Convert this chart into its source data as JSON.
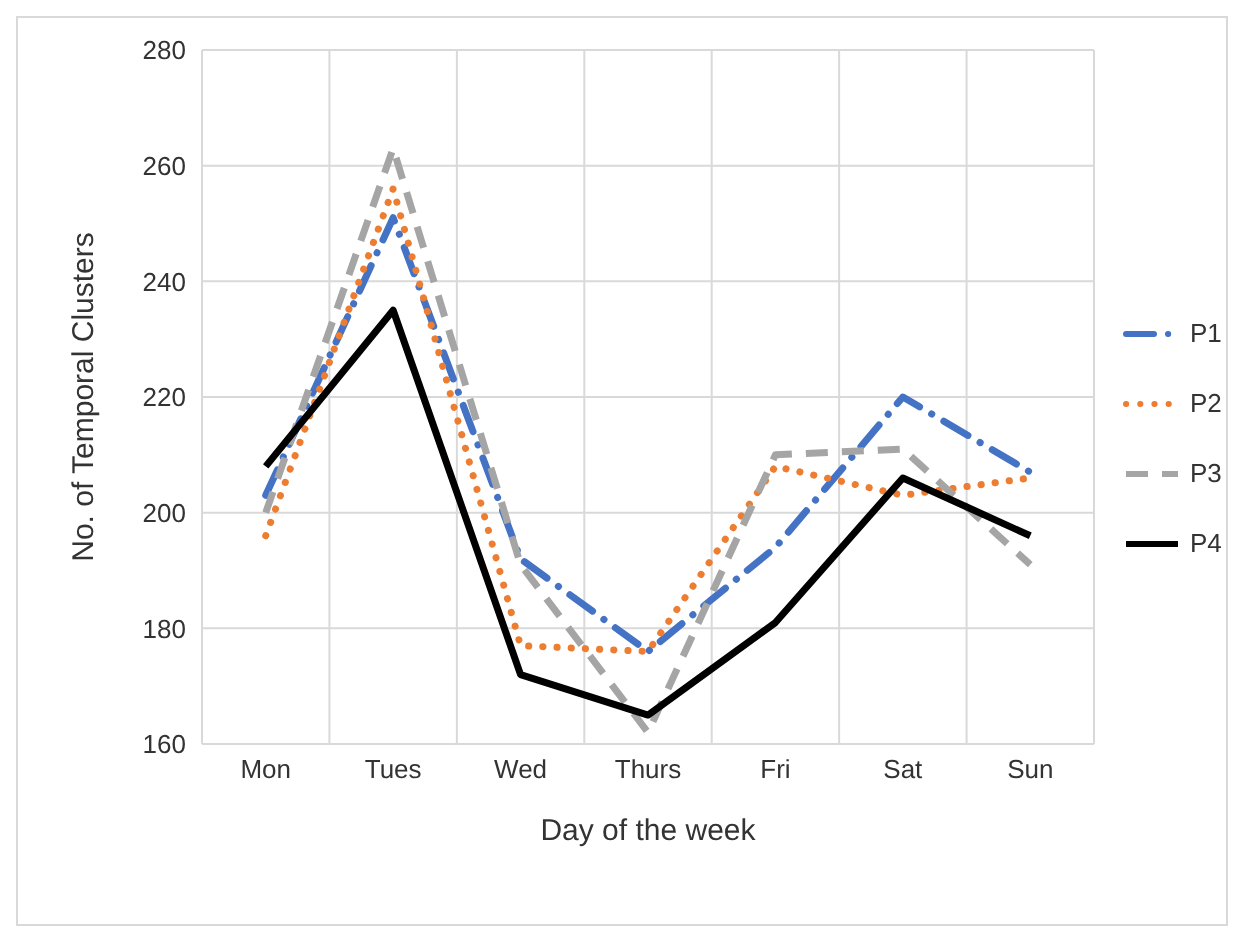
{
  "chart_data": {
    "type": "line",
    "xlabel": "Day of the week",
    "ylabel": "No. of Temporal Clusters",
    "categories": [
      "Mon",
      "Tues",
      "Wed",
      "Thurs",
      "Fri",
      "Sat",
      "Sun"
    ],
    "series": [
      {
        "name": "P1",
        "color": "#4472c4",
        "line_style": "dashdot",
        "values": [
          203,
          251,
          192,
          176,
          194,
          220,
          207
        ]
      },
      {
        "name": "P2",
        "color": "#ed7d31",
        "line_style": "dotted",
        "values": [
          196,
          256,
          177,
          176,
          208,
          203,
          206
        ]
      },
      {
        "name": "P3",
        "color": "#a5a5a5",
        "line_style": "dashed",
        "values": [
          200,
          263,
          191,
          162,
          210,
          211,
          191
        ]
      },
      {
        "name": "P4",
        "color": "#000000",
        "line_style": "solid",
        "values": [
          208,
          235,
          172,
          165,
          181,
          206,
          196
        ]
      }
    ],
    "ylim": [
      160,
      280
    ],
    "yticks": [
      160,
      180,
      200,
      220,
      240,
      260,
      280
    ],
    "grid": true,
    "legend": "right",
    "marker": "none"
  }
}
